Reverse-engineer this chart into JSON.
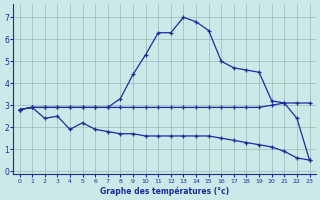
{
  "background_color": "#cce8e8",
  "line_color": "#1a2e99",
  "grid_color": "#99bbbb",
  "xlim": [
    -0.5,
    23.5
  ],
  "ylim": [
    -0.15,
    7.6
  ],
  "xticks": [
    0,
    1,
    2,
    3,
    4,
    5,
    6,
    7,
    8,
    9,
    10,
    11,
    12,
    13,
    14,
    15,
    16,
    17,
    18,
    19,
    20,
    21,
    22,
    23
  ],
  "yticks": [
    0,
    1,
    2,
    3,
    4,
    5,
    6,
    7
  ],
  "xlabel": "Graphe des températures (°c)",
  "curve_top_x": [
    0,
    1,
    2,
    3,
    4,
    5,
    6,
    7,
    8,
    9,
    10,
    11,
    12,
    13,
    14,
    15,
    16,
    17,
    18,
    19,
    20,
    21,
    22,
    23
  ],
  "curve_top_y": [
    2.8,
    2.9,
    2.9,
    2.9,
    2.9,
    2.9,
    2.9,
    2.9,
    3.3,
    4.4,
    5.3,
    6.3,
    6.3,
    7.0,
    6.8,
    6.4,
    5.0,
    4.7,
    4.6,
    4.5,
    3.2,
    3.1,
    3.1,
    3.1
  ],
  "curve_mid_x": [
    0,
    1,
    2,
    3,
    4,
    5,
    6,
    7,
    8,
    9,
    10,
    11,
    12,
    13,
    14,
    15,
    16,
    17,
    18,
    19,
    20,
    21,
    22,
    23
  ],
  "curve_mid_y": [
    2.8,
    2.9,
    2.9,
    2.9,
    2.9,
    2.9,
    2.9,
    2.9,
    2.9,
    2.9,
    2.9,
    2.9,
    2.9,
    2.9,
    2.9,
    2.9,
    2.9,
    2.9,
    2.9,
    2.9,
    3.0,
    3.1,
    2.4,
    0.5
  ],
  "curve_bot_x": [
    0,
    1,
    2,
    3,
    4,
    5,
    6,
    7,
    8,
    9,
    10,
    11,
    12,
    13,
    14,
    15,
    16,
    17,
    18,
    19,
    20,
    21,
    22,
    23
  ],
  "curve_bot_y": [
    2.8,
    2.9,
    2.4,
    2.5,
    1.9,
    2.2,
    1.9,
    1.8,
    1.7,
    1.7,
    1.6,
    1.6,
    1.6,
    1.6,
    1.6,
    1.6,
    1.5,
    1.4,
    1.3,
    1.2,
    1.1,
    0.9,
    0.6,
    0.5
  ]
}
